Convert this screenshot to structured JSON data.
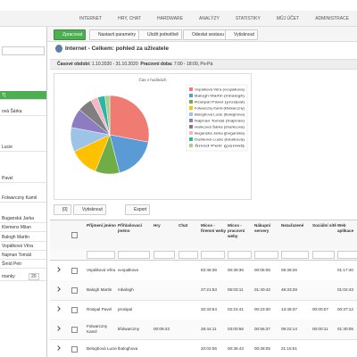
{
  "nav": [
    "INTERNET",
    "HRY, CHAT",
    "HARDWARE",
    "ANALÝZY",
    "STATISTIKY",
    "MŮJ ÚČET",
    "ADMINISTRACE"
  ],
  "sidebar": [
    "T]",
    "ová Šárka",
    "Lucie",
    "Pavel",
    "Folwarczny Kamil",
    "Buganská Jarka",
    "Klemens Milan",
    "Balogh Martin",
    "Vopálková Věra",
    "Najman Tomáš",
    "Šmíd Petr",
    "manky"
  ],
  "page_size": "20",
  "toolbar": [
    "Zpracovat",
    "Nastavit parametry",
    "Uložit jednotlivě",
    "Odeslat sestavu",
    "Vytisknout"
  ],
  "heading": "Internet - Celkem: pohled za uživatele",
  "period_label": "Časové období:",
  "period": "1.10.2020 - 31.10.2020",
  "hours_label": "Pracovní doba:",
  "hours": "7:00 - 18:00, Po-Pá",
  "chart_data": {
    "type": "pie",
    "title": "Čas v hodinách",
    "categories": [
      "Vopálková Věra (vvopalkova)",
      "Balogh Martin (mbalogh)",
      "Rosipal Pavel (prosipal)",
      "Folwarczny Kamil (kfolwarczny)",
      "Beloghová Lucie (lbaloghova)",
      "Najman Tomáš (tnajman)",
      "Harkcová Šárka (sharkcova)",
      "Buganská Jarka (jbuganska)",
      "Dušková Lucie (lduskova)",
      "Šmíd Petr (psmid)"
    ],
    "values": [
      28,
      18,
      10,
      12,
      10,
      8,
      6,
      3,
      3,
      2
    ],
    "colors": [
      "#f07b72",
      "#5b9bd5",
      "#70ad47",
      "#ffc000",
      "#9dc3e6",
      "#8e7cc3",
      "#7f7f7f",
      "#f4b6c2",
      "#2fb5a5",
      "#a9d18e"
    ]
  },
  "table_toolbar": [
    "[0]",
    "Vytisknout",
    "Export"
  ],
  "table": {
    "columns": [
      "Příjmení jméno",
      "Přihlašovací jméno",
      "Hry",
      "Chat",
      "Mícos -firemní weby",
      "Mícos -pracovní weby",
      "Nákupní servery",
      "Nezařazené",
      "Sociální sítě",
      "Web aplikace"
    ],
    "rows": [
      [
        "Vopálková Věra",
        "vvopalkova",
        "",
        "",
        "83:46:36",
        "00:39:36",
        "00:05:05",
        "06:38:26",
        "",
        "01:17:40"
      ],
      [
        "Balogh Martin",
        "mbalogh",
        "",
        "",
        "27:21:53",
        "06:03:11",
        "01:40:42",
        "48:33:29",
        "",
        "01:02:43"
      ],
      [
        "Rosipal Pavel",
        "prosipal",
        "",
        "",
        "32:33:54",
        "02:24:41",
        "00:23:30",
        "13:49:37",
        "00:00:07",
        "00:37:12"
      ],
      [
        "Folwarczny Kamil",
        "kfolwarczny",
        "00:09:43",
        "",
        "28:44:11",
        "03:00:56",
        "00:56:37",
        "09:22:14",
        "00:00:11",
        "01:30:05"
      ],
      [
        "Beloghová Lucie",
        "lbaloghova",
        "",
        "",
        "20:02:06",
        "00:36:43",
        "00:38:05",
        "21:15:51",
        "",
        ""
      ]
    ]
  }
}
